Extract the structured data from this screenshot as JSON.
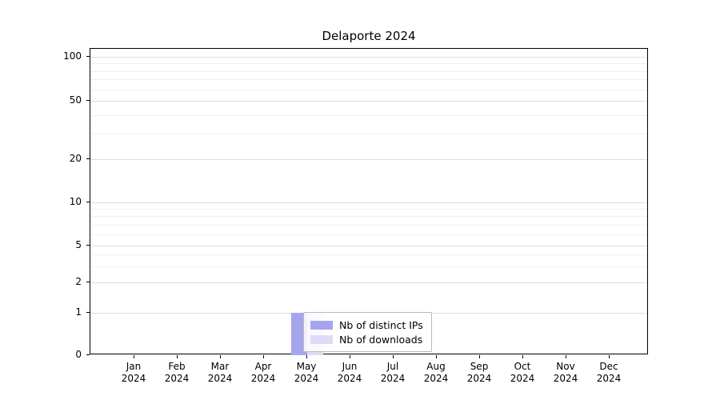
{
  "chart_data": {
    "type": "bar",
    "title": "Delaporte 2024",
    "xlabel": "",
    "ylabel": "",
    "y_scale": "symlog",
    "y_ticks": [
      0,
      1,
      2,
      5,
      10,
      20,
      50,
      100
    ],
    "ylim": [
      0,
      110
    ],
    "grid": "horizontal, major and log-minor gridlines",
    "legend_position": "inside bottom-center",
    "categories": [
      "Jan 2024",
      "Feb 2024",
      "Mar 2024",
      "Apr 2024",
      "May 2024",
      "Jun 2024",
      "Jul 2024",
      "Aug 2024",
      "Sep 2024",
      "Oct 2024",
      "Nov 2024",
      "Dec 2024"
    ],
    "series": [
      {
        "name": "Nb of distinct IPs",
        "color": "#a5a5ee",
        "values": [
          0,
          0,
          0,
          0,
          1,
          0,
          0,
          0,
          0,
          0,
          0,
          0
        ]
      },
      {
        "name": "Nb of downloads",
        "color": "#dcdcf8",
        "values": [
          0,
          0,
          0,
          0,
          1,
          0,
          0,
          0,
          0,
          0,
          0,
          0
        ]
      }
    ]
  }
}
